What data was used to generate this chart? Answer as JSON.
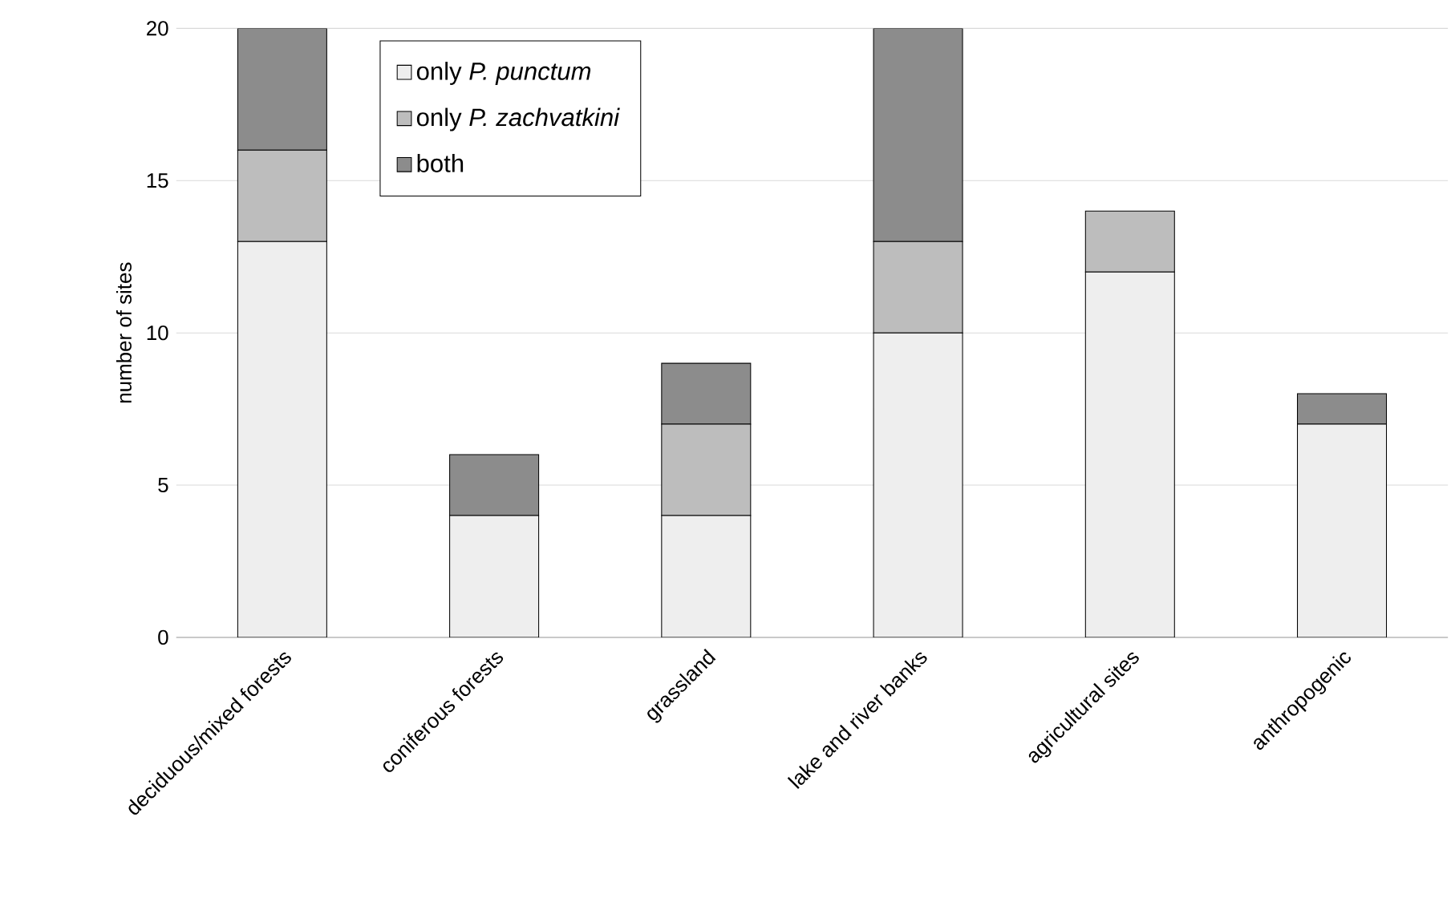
{
  "chart_data": {
    "type": "bar",
    "stacked": true,
    "ylabel": "number of sites",
    "categories": [
      "deciduous/mixed forests",
      "coniferous forests",
      "grassland",
      "lake and river banks",
      "agricultural sites",
      "anthropogenic"
    ],
    "series": [
      {
        "name": "only *P. punctum*",
        "color": "#eeeeee",
        "values": [
          13,
          4,
          4,
          10,
          12,
          7
        ]
      },
      {
        "name": "only *P. zachvatkini*",
        "color": "#bdbdbd",
        "values": [
          3,
          0,
          3,
          3,
          2,
          0
        ]
      },
      {
        "name": "both",
        "color": "#8c8c8c",
        "values": [
          4,
          2,
          2,
          7,
          0,
          1
        ]
      }
    ],
    "ylim": [
      0,
      20
    ],
    "yticks": [
      0,
      5,
      10,
      15,
      20
    ],
    "grid": "y",
    "legend": "top"
  }
}
